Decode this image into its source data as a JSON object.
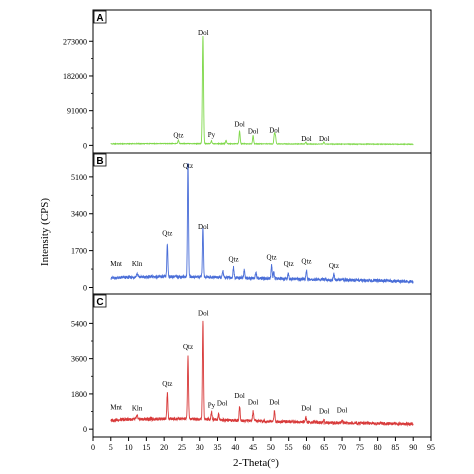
{
  "chart_data": {
    "type": "line",
    "xlabel": "2-Theta(°)",
    "ylabel": "Intensity (CPS)",
    "xlim": [
      0,
      95
    ],
    "x_ticks": [
      0,
      5,
      10,
      15,
      20,
      25,
      30,
      35,
      40,
      45,
      50,
      55,
      60,
      65,
      70,
      75,
      80,
      85,
      90,
      95
    ],
    "panels": [
      {
        "letter": "A",
        "color": "#7fd84a",
        "ylim": [
          -20000,
          355000
        ],
        "y_ticks": [
          0,
          91000,
          182000,
          273000
        ],
        "x_range": [
          5,
          90
        ],
        "baseline": [
          [
            5,
            4000
          ],
          [
            20,
            4800
          ],
          [
            40,
            4200
          ],
          [
            60,
            3600
          ],
          [
            90,
            3000
          ]
        ],
        "peaks": [
          {
            "x": 24.0,
            "y": 9000,
            "w": 0.2
          },
          {
            "x": 30.9,
            "y": 282000,
            "w": 0.22
          },
          {
            "x": 33.3,
            "y": 7000,
            "w": 0.2
          },
          {
            "x": 37.4,
            "y": 9000,
            "w": 0.2
          },
          {
            "x": 41.2,
            "y": 33000,
            "w": 0.22
          },
          {
            "x": 45.0,
            "y": 22000,
            "w": 0.2
          },
          {
            "x": 51.0,
            "y": 27000,
            "w": 0.22
          },
          {
            "x": 51.3,
            "y": 18000,
            "w": 0.2
          },
          {
            "x": 59.8,
            "y": 5000,
            "w": 0.2
          },
          {
            "x": 64.9,
            "y": 5000,
            "w": 0.2
          }
        ],
        "labels": [
          {
            "text": "Dol",
            "x": 31.0,
            "y": 290000
          },
          {
            "text": "Qtz",
            "x": 24.0,
            "y": 20000
          },
          {
            "text": "Py",
            "x": 33.3,
            "y": 22000
          },
          {
            "text": "Dol",
            "x": 41.2,
            "y": 50000
          },
          {
            "text": "Dol",
            "x": 45.0,
            "y": 31000
          },
          {
            "text": "Dol",
            "x": 51.0,
            "y": 34000
          },
          {
            "text": "Dol",
            "x": 60.0,
            "y": 12000
          },
          {
            "text": "Dol",
            "x": 65.0,
            "y": 12000
          }
        ]
      },
      {
        "letter": "B",
        "color": "#4a6ed8",
        "ylim": [
          -300,
          6200
        ],
        "y_ticks": [
          0,
          1700,
          3400,
          5100
        ],
        "x_range": [
          5,
          90
        ],
        "baseline": [
          [
            5,
            430
          ],
          [
            10,
            470
          ],
          [
            20,
            500
          ],
          [
            30,
            490
          ],
          [
            40,
            450
          ],
          [
            50,
            410
          ],
          [
            60,
            380
          ],
          [
            70,
            350
          ],
          [
            80,
            320
          ],
          [
            90,
            270
          ]
        ],
        "peaks": [
          {
            "x": 12.4,
            "y": 150,
            "w": 0.3
          },
          {
            "x": 20.9,
            "y": 1500,
            "w": 0.2
          },
          {
            "x": 26.7,
            "y": 5300,
            "w": 0.2
          },
          {
            "x": 30.9,
            "y": 2300,
            "w": 0.2
          },
          {
            "x": 36.5,
            "y": 300,
            "w": 0.2
          },
          {
            "x": 39.5,
            "y": 500,
            "w": 0.2
          },
          {
            "x": 42.5,
            "y": 350,
            "w": 0.2
          },
          {
            "x": 45.8,
            "y": 300,
            "w": 0.2
          },
          {
            "x": 50.2,
            "y": 600,
            "w": 0.2
          },
          {
            "x": 50.8,
            "y": 350,
            "w": 0.2
          },
          {
            "x": 54.9,
            "y": 250,
            "w": 0.2
          },
          {
            "x": 60.0,
            "y": 400,
            "w": 0.2
          },
          {
            "x": 67.7,
            "y": 300,
            "w": 0.2
          }
        ],
        "labels": [
          {
            "text": "Mnt",
            "x": 6.5,
            "y": 1000
          },
          {
            "text": "Kln",
            "x": 12.4,
            "y": 1000
          },
          {
            "text": "Qtz",
            "x": 20.9,
            "y": 2400
          },
          {
            "text": "Qtz",
            "x": 26.7,
            "y": 5500
          },
          {
            "text": "Dol",
            "x": 31.0,
            "y": 2700
          },
          {
            "text": "Qtz",
            "x": 39.5,
            "y": 1200
          },
          {
            "text": "Qtz",
            "x": 50.2,
            "y": 1300
          },
          {
            "text": "Qtz",
            "x": 55.0,
            "y": 1000
          },
          {
            "text": "Qtz",
            "x": 60.0,
            "y": 1100
          },
          {
            "text": "Qtz",
            "x": 67.7,
            "y": 900
          }
        ]
      },
      {
        "letter": "C",
        "color": "#d83a3a",
        "ylim": [
          -400,
          6900
        ],
        "y_ticks": [
          0,
          1800,
          3600,
          5400
        ],
        "x_range": [
          5,
          90
        ],
        "baseline": [
          [
            5,
            450
          ],
          [
            10,
            500
          ],
          [
            20,
            530
          ],
          [
            30,
            520
          ],
          [
            40,
            450
          ],
          [
            50,
            400
          ],
          [
            60,
            360
          ],
          [
            70,
            320
          ],
          [
            80,
            290
          ],
          [
            90,
            260
          ]
        ],
        "peaks": [
          {
            "x": 12.4,
            "y": 150,
            "w": 0.3
          },
          {
            "x": 20.9,
            "y": 1300,
            "w": 0.2
          },
          {
            "x": 26.7,
            "y": 3200,
            "w": 0.2
          },
          {
            "x": 30.9,
            "y": 5000,
            "w": 0.2
          },
          {
            "x": 33.3,
            "y": 400,
            "w": 0.2
          },
          {
            "x": 35.3,
            "y": 300,
            "w": 0.2
          },
          {
            "x": 41.2,
            "y": 750,
            "w": 0.2
          },
          {
            "x": 45.0,
            "y": 500,
            "w": 0.2
          },
          {
            "x": 51.0,
            "y": 550,
            "w": 0.2
          },
          {
            "x": 59.8,
            "y": 250,
            "w": 0.2
          },
          {
            "x": 64.9,
            "y": 150,
            "w": 0.2
          },
          {
            "x": 70.0,
            "y": 150,
            "w": 0.2
          }
        ],
        "labels": [
          {
            "text": "Mnt",
            "x": 6.5,
            "y": 1000
          },
          {
            "text": "Kln",
            "x": 12.4,
            "y": 950
          },
          {
            "text": "Qtz",
            "x": 20.9,
            "y": 2200
          },
          {
            "text": "Qtz",
            "x": 26.7,
            "y": 4100
          },
          {
            "text": "Dol",
            "x": 31.0,
            "y": 5800
          },
          {
            "text": "Py",
            "x": 33.3,
            "y": 1100
          },
          {
            "text": "Dol",
            "x": 36.3,
            "y": 1200
          },
          {
            "text": "Dol",
            "x": 41.2,
            "y": 1600
          },
          {
            "text": "Dol",
            "x": 45.0,
            "y": 1250
          },
          {
            "text": "Dol",
            "x": 51.0,
            "y": 1250
          },
          {
            "text": "Dol",
            "x": 60.0,
            "y": 950
          },
          {
            "text": "Dol",
            "x": 65.0,
            "y": 800
          },
          {
            "text": "Dol",
            "x": 70.0,
            "y": 850
          }
        ]
      }
    ]
  }
}
